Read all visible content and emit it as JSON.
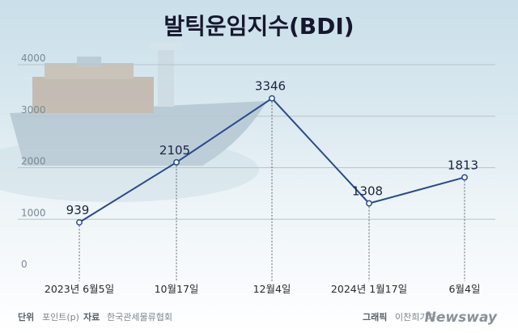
{
  "chart_data": {
    "type": "line",
    "title": "발틱운임지수(BDI)",
    "x": [
      "2023년 6월5일",
      "10월17일",
      "12월4일",
      "2024년 1월17일",
      "6월4일"
    ],
    "series": [
      {
        "values": [
          939,
          2105,
          3346,
          1308,
          1813
        ]
      }
    ],
    "ylim": [
      0,
      4000
    ],
    "yticks": [
      "0",
      "1000",
      "2000",
      "3000",
      "4000"
    ],
    "grid": true,
    "line_color": "#2b4a8b"
  },
  "footer": {
    "unit_label": "단위",
    "unit_value": "포인트(p)",
    "source_label": "자료",
    "source_value": "한국관세물류협회",
    "credit_label": "그래픽",
    "credit_value": "이찬희기자",
    "brand": "Newsway"
  }
}
